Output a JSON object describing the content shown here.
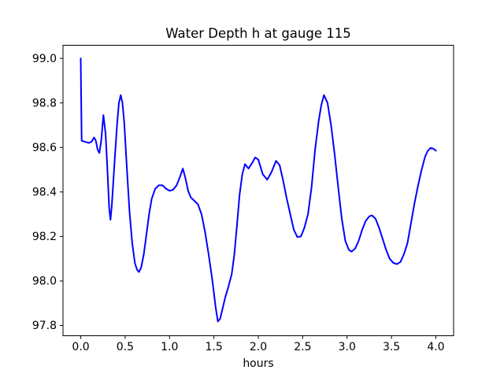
{
  "figure": {
    "background": "#ffffff",
    "spine_color": "#000000"
  },
  "chart_data": {
    "type": "line",
    "title": "Water Depth h at gauge 115",
    "xlabel": "hours",
    "ylabel": "",
    "grid": false,
    "legend_position": "none",
    "xlim": [
      -0.2,
      4.2
    ],
    "ylim": [
      97.754,
      99.059
    ],
    "x_tick_labels": [
      "0.0",
      "0.5",
      "1.0",
      "1.5",
      "2.0",
      "2.5",
      "3.0",
      "3.5",
      "4.0"
    ],
    "y_tick_labels": [
      "97.8",
      "98.0",
      "98.2",
      "98.4",
      "98.6",
      "98.8",
      "99.0"
    ],
    "line_color": "#0000ff",
    "line_width": 2,
    "series": [
      {
        "points": [
          [
            0.0,
            99.0
          ],
          [
            0.01,
            98.63
          ],
          [
            0.05,
            98.625
          ],
          [
            0.09,
            98.62
          ],
          [
            0.12,
            98.625
          ],
          [
            0.15,
            98.645
          ],
          [
            0.17,
            98.63
          ],
          [
            0.19,
            98.59
          ],
          [
            0.21,
            98.575
          ],
          [
            0.23,
            98.63
          ],
          [
            0.255,
            98.745
          ],
          [
            0.28,
            98.66
          ],
          [
            0.3,
            98.5
          ],
          [
            0.32,
            98.33
          ],
          [
            0.335,
            98.275
          ],
          [
            0.35,
            98.34
          ],
          [
            0.38,
            98.53
          ],
          [
            0.41,
            98.71
          ],
          [
            0.43,
            98.8
          ],
          [
            0.45,
            98.835
          ],
          [
            0.47,
            98.8
          ],
          [
            0.49,
            98.71
          ],
          [
            0.52,
            98.5
          ],
          [
            0.55,
            98.31
          ],
          [
            0.58,
            98.17
          ],
          [
            0.61,
            98.08
          ],
          [
            0.635,
            98.05
          ],
          [
            0.655,
            98.04
          ],
          [
            0.68,
            98.06
          ],
          [
            0.71,
            98.12
          ],
          [
            0.74,
            98.21
          ],
          [
            0.77,
            98.3
          ],
          [
            0.8,
            98.37
          ],
          [
            0.84,
            98.415
          ],
          [
            0.88,
            98.43
          ],
          [
            0.92,
            98.43
          ],
          [
            0.96,
            98.415
          ],
          [
            1.0,
            98.405
          ],
          [
            1.04,
            98.41
          ],
          [
            1.08,
            98.43
          ],
          [
            1.12,
            98.47
          ],
          [
            1.15,
            98.505
          ],
          [
            1.18,
            98.46
          ],
          [
            1.21,
            98.405
          ],
          [
            1.24,
            98.375
          ],
          [
            1.28,
            98.36
          ],
          [
            1.32,
            98.345
          ],
          [
            1.36,
            98.3
          ],
          [
            1.4,
            98.22
          ],
          [
            1.44,
            98.12
          ],
          [
            1.48,
            98.01
          ],
          [
            1.52,
            97.88
          ],
          [
            1.545,
            97.818
          ],
          [
            1.57,
            97.83
          ],
          [
            1.6,
            97.88
          ],
          [
            1.63,
            97.93
          ],
          [
            1.66,
            97.97
          ],
          [
            1.7,
            98.03
          ],
          [
            1.73,
            98.12
          ],
          [
            1.76,
            98.25
          ],
          [
            1.79,
            98.39
          ],
          [
            1.82,
            98.48
          ],
          [
            1.85,
            98.525
          ],
          [
            1.89,
            98.505
          ],
          [
            1.93,
            98.53
          ],
          [
            1.965,
            98.555
          ],
          [
            2.0,
            98.545
          ],
          [
            2.05,
            98.48
          ],
          [
            2.1,
            98.455
          ],
          [
            2.15,
            98.49
          ],
          [
            2.2,
            98.54
          ],
          [
            2.24,
            98.52
          ],
          [
            2.28,
            98.45
          ],
          [
            2.32,
            98.37
          ],
          [
            2.36,
            98.3
          ],
          [
            2.4,
            98.23
          ],
          [
            2.44,
            98.197
          ],
          [
            2.48,
            98.2
          ],
          [
            2.52,
            98.24
          ],
          [
            2.56,
            98.3
          ],
          [
            2.6,
            98.42
          ],
          [
            2.64,
            98.59
          ],
          [
            2.68,
            98.72
          ],
          [
            2.71,
            98.79
          ],
          [
            2.74,
            98.835
          ],
          [
            2.78,
            98.8
          ],
          [
            2.82,
            98.7
          ],
          [
            2.86,
            98.57
          ],
          [
            2.9,
            98.42
          ],
          [
            2.94,
            98.28
          ],
          [
            2.98,
            98.18
          ],
          [
            3.02,
            98.14
          ],
          [
            3.05,
            98.132
          ],
          [
            3.09,
            98.145
          ],
          [
            3.13,
            98.18
          ],
          [
            3.17,
            98.23
          ],
          [
            3.21,
            98.27
          ],
          [
            3.25,
            98.29
          ],
          [
            3.28,
            98.295
          ],
          [
            3.32,
            98.28
          ],
          [
            3.36,
            98.24
          ],
          [
            3.4,
            98.19
          ],
          [
            3.44,
            98.14
          ],
          [
            3.48,
            98.1
          ],
          [
            3.52,
            98.082
          ],
          [
            3.56,
            98.076
          ],
          [
            3.6,
            98.085
          ],
          [
            3.64,
            98.12
          ],
          [
            3.68,
            98.17
          ],
          [
            3.72,
            98.26
          ],
          [
            3.76,
            98.35
          ],
          [
            3.8,
            98.43
          ],
          [
            3.84,
            98.5
          ],
          [
            3.88,
            98.56
          ],
          [
            3.91,
            98.585
          ],
          [
            3.94,
            98.598
          ],
          [
            3.97,
            98.595
          ],
          [
            4.0,
            98.585
          ]
        ]
      }
    ]
  }
}
